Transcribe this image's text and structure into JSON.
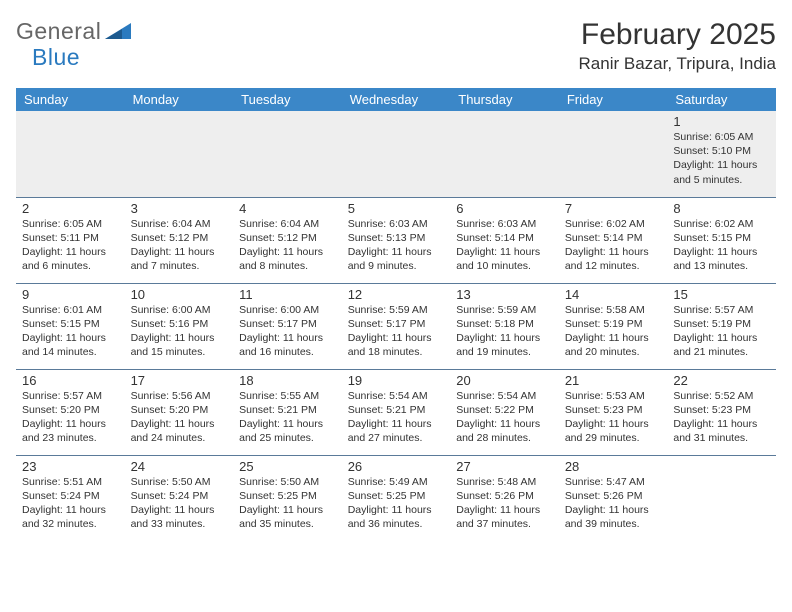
{
  "brand": {
    "part1": "General",
    "part2": "Blue"
  },
  "title": "February 2025",
  "location": "Ranir Bazar, Tripura, India",
  "colors": {
    "header_bg": "#3b87c8",
    "header_text": "#ffffff",
    "cell_border": "#5a7a99",
    "first_row_bg": "#eeeeee",
    "text": "#333333",
    "logo_gray": "#666666",
    "logo_blue": "#2a7abf",
    "page_bg": "#ffffff"
  },
  "typography": {
    "title_fontsize": 30,
    "location_fontsize": 17,
    "weekday_fontsize": 13,
    "daynum_fontsize": 13,
    "detail_fontsize": 10.5
  },
  "weekdays": [
    "Sunday",
    "Monday",
    "Tuesday",
    "Wednesday",
    "Thursday",
    "Friday",
    "Saturday"
  ],
  "weeks": [
    [
      {
        "day": "",
        "sunrise": "",
        "sunset": "",
        "daylight": ""
      },
      {
        "day": "",
        "sunrise": "",
        "sunset": "",
        "daylight": ""
      },
      {
        "day": "",
        "sunrise": "",
        "sunset": "",
        "daylight": ""
      },
      {
        "day": "",
        "sunrise": "",
        "sunset": "",
        "daylight": ""
      },
      {
        "day": "",
        "sunrise": "",
        "sunset": "",
        "daylight": ""
      },
      {
        "day": "",
        "sunrise": "",
        "sunset": "",
        "daylight": ""
      },
      {
        "day": "1",
        "sunrise": "Sunrise: 6:05 AM",
        "sunset": "Sunset: 5:10 PM",
        "daylight": "Daylight: 11 hours and 5 minutes."
      }
    ],
    [
      {
        "day": "2",
        "sunrise": "Sunrise: 6:05 AM",
        "sunset": "Sunset: 5:11 PM",
        "daylight": "Daylight: 11 hours and 6 minutes."
      },
      {
        "day": "3",
        "sunrise": "Sunrise: 6:04 AM",
        "sunset": "Sunset: 5:12 PM",
        "daylight": "Daylight: 11 hours and 7 minutes."
      },
      {
        "day": "4",
        "sunrise": "Sunrise: 6:04 AM",
        "sunset": "Sunset: 5:12 PM",
        "daylight": "Daylight: 11 hours and 8 minutes."
      },
      {
        "day": "5",
        "sunrise": "Sunrise: 6:03 AM",
        "sunset": "Sunset: 5:13 PM",
        "daylight": "Daylight: 11 hours and 9 minutes."
      },
      {
        "day": "6",
        "sunrise": "Sunrise: 6:03 AM",
        "sunset": "Sunset: 5:14 PM",
        "daylight": "Daylight: 11 hours and 10 minutes."
      },
      {
        "day": "7",
        "sunrise": "Sunrise: 6:02 AM",
        "sunset": "Sunset: 5:14 PM",
        "daylight": "Daylight: 11 hours and 12 minutes."
      },
      {
        "day": "8",
        "sunrise": "Sunrise: 6:02 AM",
        "sunset": "Sunset: 5:15 PM",
        "daylight": "Daylight: 11 hours and 13 minutes."
      }
    ],
    [
      {
        "day": "9",
        "sunrise": "Sunrise: 6:01 AM",
        "sunset": "Sunset: 5:15 PM",
        "daylight": "Daylight: 11 hours and 14 minutes."
      },
      {
        "day": "10",
        "sunrise": "Sunrise: 6:00 AM",
        "sunset": "Sunset: 5:16 PM",
        "daylight": "Daylight: 11 hours and 15 minutes."
      },
      {
        "day": "11",
        "sunrise": "Sunrise: 6:00 AM",
        "sunset": "Sunset: 5:17 PM",
        "daylight": "Daylight: 11 hours and 16 minutes."
      },
      {
        "day": "12",
        "sunrise": "Sunrise: 5:59 AM",
        "sunset": "Sunset: 5:17 PM",
        "daylight": "Daylight: 11 hours and 18 minutes."
      },
      {
        "day": "13",
        "sunrise": "Sunrise: 5:59 AM",
        "sunset": "Sunset: 5:18 PM",
        "daylight": "Daylight: 11 hours and 19 minutes."
      },
      {
        "day": "14",
        "sunrise": "Sunrise: 5:58 AM",
        "sunset": "Sunset: 5:19 PM",
        "daylight": "Daylight: 11 hours and 20 minutes."
      },
      {
        "day": "15",
        "sunrise": "Sunrise: 5:57 AM",
        "sunset": "Sunset: 5:19 PM",
        "daylight": "Daylight: 11 hours and 21 minutes."
      }
    ],
    [
      {
        "day": "16",
        "sunrise": "Sunrise: 5:57 AM",
        "sunset": "Sunset: 5:20 PM",
        "daylight": "Daylight: 11 hours and 23 minutes."
      },
      {
        "day": "17",
        "sunrise": "Sunrise: 5:56 AM",
        "sunset": "Sunset: 5:20 PM",
        "daylight": "Daylight: 11 hours and 24 minutes."
      },
      {
        "day": "18",
        "sunrise": "Sunrise: 5:55 AM",
        "sunset": "Sunset: 5:21 PM",
        "daylight": "Daylight: 11 hours and 25 minutes."
      },
      {
        "day": "19",
        "sunrise": "Sunrise: 5:54 AM",
        "sunset": "Sunset: 5:21 PM",
        "daylight": "Daylight: 11 hours and 27 minutes."
      },
      {
        "day": "20",
        "sunrise": "Sunrise: 5:54 AM",
        "sunset": "Sunset: 5:22 PM",
        "daylight": "Daylight: 11 hours and 28 minutes."
      },
      {
        "day": "21",
        "sunrise": "Sunrise: 5:53 AM",
        "sunset": "Sunset: 5:23 PM",
        "daylight": "Daylight: 11 hours and 29 minutes."
      },
      {
        "day": "22",
        "sunrise": "Sunrise: 5:52 AM",
        "sunset": "Sunset: 5:23 PM",
        "daylight": "Daylight: 11 hours and 31 minutes."
      }
    ],
    [
      {
        "day": "23",
        "sunrise": "Sunrise: 5:51 AM",
        "sunset": "Sunset: 5:24 PM",
        "daylight": "Daylight: 11 hours and 32 minutes."
      },
      {
        "day": "24",
        "sunrise": "Sunrise: 5:50 AM",
        "sunset": "Sunset: 5:24 PM",
        "daylight": "Daylight: 11 hours and 33 minutes."
      },
      {
        "day": "25",
        "sunrise": "Sunrise: 5:50 AM",
        "sunset": "Sunset: 5:25 PM",
        "daylight": "Daylight: 11 hours and 35 minutes."
      },
      {
        "day": "26",
        "sunrise": "Sunrise: 5:49 AM",
        "sunset": "Sunset: 5:25 PM",
        "daylight": "Daylight: 11 hours and 36 minutes."
      },
      {
        "day": "27",
        "sunrise": "Sunrise: 5:48 AM",
        "sunset": "Sunset: 5:26 PM",
        "daylight": "Daylight: 11 hours and 37 minutes."
      },
      {
        "day": "28",
        "sunrise": "Sunrise: 5:47 AM",
        "sunset": "Sunset: 5:26 PM",
        "daylight": "Daylight: 11 hours and 39 minutes."
      },
      {
        "day": "",
        "sunrise": "",
        "sunset": "",
        "daylight": ""
      }
    ]
  ]
}
